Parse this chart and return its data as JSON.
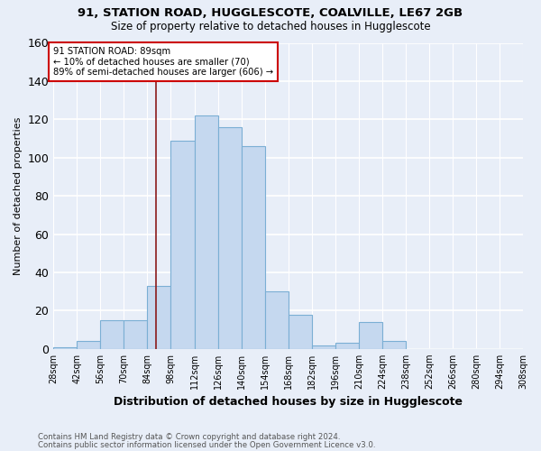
{
  "title": "91, STATION ROAD, HUGGLESCOTE, COALVILLE, LE67 2GB",
  "subtitle": "Size of property relative to detached houses in Hugglescote",
  "xlabel": "Distribution of detached houses by size in Hugglescote",
  "ylabel": "Number of detached properties",
  "footnote1": "Contains HM Land Registry data © Crown copyright and database right 2024.",
  "footnote2": "Contains public sector information licensed under the Open Government Licence v3.0.",
  "property_size": 89,
  "annotation_line1": "91 STATION ROAD: 89sqm",
  "annotation_line2": "← 10% of detached houses are smaller (70)",
  "annotation_line3": "89% of semi-detached houses are larger (606) →",
  "bar_color": "#c5d8ef",
  "bar_edge_color": "#7bafd4",
  "vline_color": "#8b1a1a",
  "annotation_box_color": "#ffffff",
  "annotation_box_edge_color": "#cc0000",
  "bin_edges": [
    28,
    42,
    56,
    70,
    84,
    98,
    112,
    126,
    140,
    154,
    168,
    182,
    196,
    210,
    224,
    238,
    252,
    266,
    280,
    294,
    308
  ],
  "bar_heights": [
    1,
    4,
    15,
    15,
    33,
    109,
    122,
    116,
    106,
    30,
    18,
    2,
    3,
    14,
    4,
    0,
    0,
    0,
    0,
    0
  ],
  "ylim": [
    0,
    160
  ],
  "yticks": [
    0,
    20,
    40,
    60,
    80,
    100,
    120,
    140,
    160
  ],
  "background_color": "#e8eef8",
  "plot_background_color": "#e8eef8"
}
